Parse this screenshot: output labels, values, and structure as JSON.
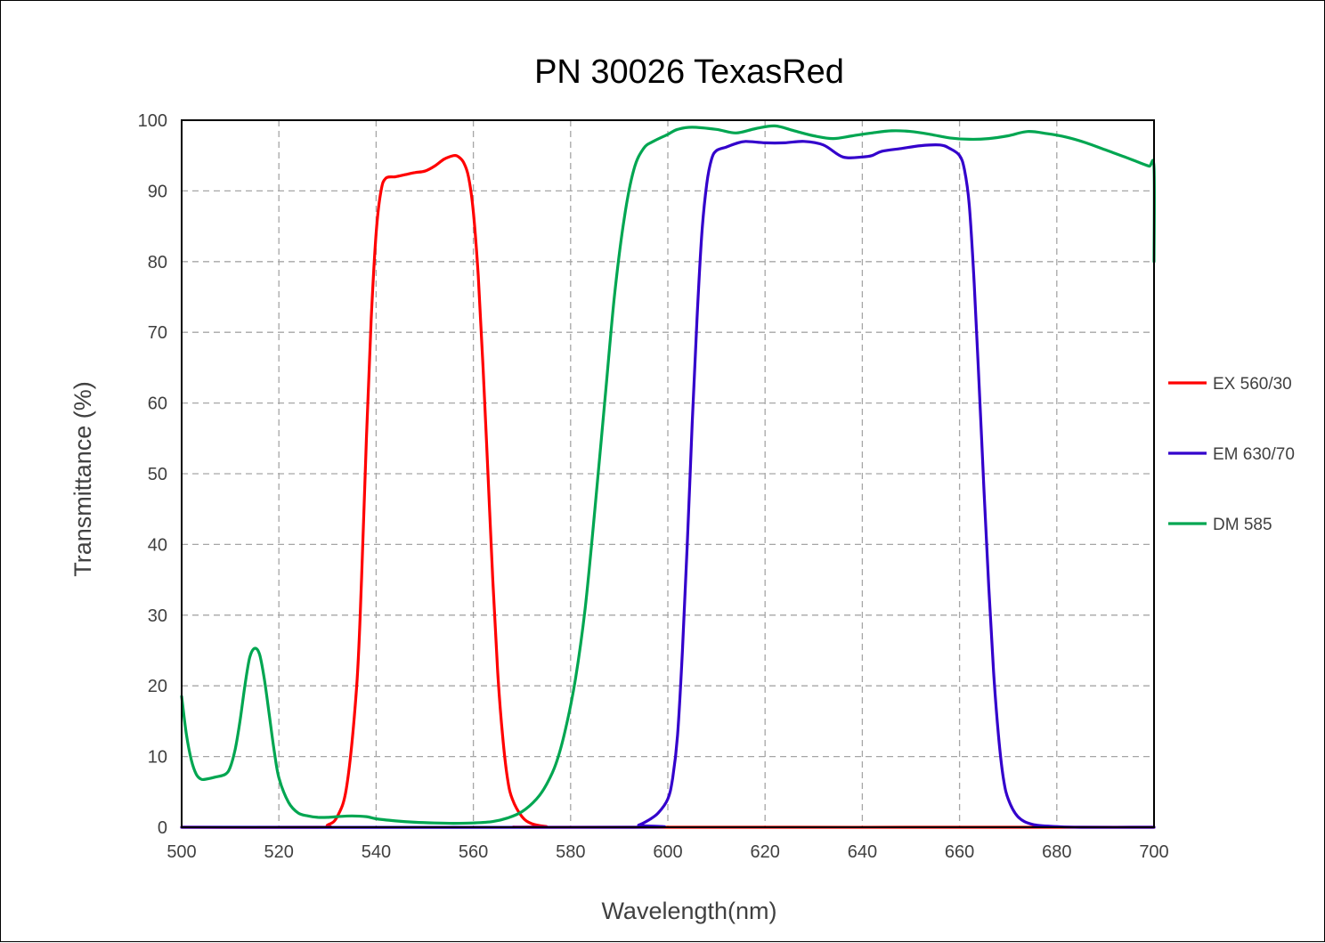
{
  "chart_data": {
    "type": "line",
    "title": "PN 30026 TexasRed",
    "xlabel": "Wavelength(nm)",
    "ylabel": "Transmittance (%)",
    "xlim": [
      500,
      700
    ],
    "ylim": [
      0,
      100
    ],
    "xticks": [
      500,
      520,
      540,
      560,
      580,
      600,
      620,
      640,
      660,
      680,
      700
    ],
    "yticks": [
      0,
      10,
      20,
      30,
      40,
      50,
      60,
      70,
      80,
      90,
      100
    ],
    "grid": true,
    "legend_position": "right",
    "series": [
      {
        "name": "EX 560/30",
        "color": "#ff0000",
        "points": [
          [
            500,
            0
          ],
          [
            528,
            0
          ],
          [
            530,
            0.3
          ],
          [
            532,
            1.5
          ],
          [
            534,
            6
          ],
          [
            536,
            20
          ],
          [
            537,
            35
          ],
          [
            538,
            55
          ],
          [
            539,
            72
          ],
          [
            540,
            84
          ],
          [
            541,
            90
          ],
          [
            542,
            91.8
          ],
          [
            544,
            92
          ],
          [
            546,
            92.3
          ],
          [
            548,
            92.6
          ],
          [
            550,
            92.8
          ],
          [
            552,
            93.5
          ],
          [
            554,
            94.5
          ],
          [
            556,
            95
          ],
          [
            557,
            94.8
          ],
          [
            558,
            94
          ],
          [
            559,
            92
          ],
          [
            560,
            87
          ],
          [
            561,
            78
          ],
          [
            562,
            65
          ],
          [
            563,
            50
          ],
          [
            564,
            35
          ],
          [
            565,
            22
          ],
          [
            566,
            13
          ],
          [
            567,
            7
          ],
          [
            568,
            4
          ],
          [
            570,
            1.5
          ],
          [
            572,
            0.5
          ],
          [
            575,
            0.1
          ],
          [
            578,
            0
          ],
          [
            700,
            0
          ]
        ]
      },
      {
        "name": "EM 630/70",
        "color": "#3300cc",
        "points": [
          [
            500,
            0
          ],
          [
            592,
            0
          ],
          [
            594,
            0.3
          ],
          [
            596,
            1
          ],
          [
            598,
            2
          ],
          [
            600,
            4
          ],
          [
            601,
            7
          ],
          [
            602,
            13
          ],
          [
            603,
            25
          ],
          [
            604,
            40
          ],
          [
            605,
            57
          ],
          [
            606,
            72
          ],
          [
            607,
            84
          ],
          [
            608,
            91
          ],
          [
            609,
            94.5
          ],
          [
            610,
            95.7
          ],
          [
            612,
            96.2
          ],
          [
            614,
            96.7
          ],
          [
            616,
            97
          ],
          [
            620,
            96.8
          ],
          [
            624,
            96.8
          ],
          [
            628,
            97
          ],
          [
            632,
            96.5
          ],
          [
            636,
            94.8
          ],
          [
            640,
            94.8
          ],
          [
            642,
            95
          ],
          [
            644,
            95.6
          ],
          [
            648,
            96
          ],
          [
            652,
            96.4
          ],
          [
            656,
            96.5
          ],
          [
            658,
            96
          ],
          [
            660,
            95
          ],
          [
            661,
            93
          ],
          [
            662,
            88
          ],
          [
            663,
            77
          ],
          [
            664,
            63
          ],
          [
            665,
            48
          ],
          [
            666,
            34
          ],
          [
            667,
            22
          ],
          [
            668,
            13
          ],
          [
            669,
            7
          ],
          [
            670,
            4
          ],
          [
            672,
            1.5
          ],
          [
            675,
            0.4
          ],
          [
            680,
            0.1
          ],
          [
            685,
            0
          ],
          [
            700,
            0
          ]
        ]
      },
      {
        "name": "DM 585",
        "color": "#00a651",
        "points": [
          [
            500,
            18.5
          ],
          [
            501,
            13
          ],
          [
            502,
            9.5
          ],
          [
            503,
            7.5
          ],
          [
            504,
            6.8
          ],
          [
            505,
            6.8
          ],
          [
            507,
            7.1
          ],
          [
            509,
            7.5
          ],
          [
            510,
            8.5
          ],
          [
            511,
            11
          ],
          [
            512,
            15
          ],
          [
            513,
            20
          ],
          [
            514,
            24
          ],
          [
            515,
            25.3
          ],
          [
            516,
            24.5
          ],
          [
            517,
            21
          ],
          [
            518,
            16
          ],
          [
            519,
            11
          ],
          [
            520,
            7
          ],
          [
            522,
            3.5
          ],
          [
            524,
            2
          ],
          [
            526,
            1.6
          ],
          [
            528,
            1.4
          ],
          [
            530,
            1.4
          ],
          [
            532,
            1.5
          ],
          [
            535,
            1.6
          ],
          [
            538,
            1.5
          ],
          [
            540,
            1.2
          ],
          [
            544,
            0.9
          ],
          [
            548,
            0.7
          ],
          [
            552,
            0.6
          ],
          [
            556,
            0.55
          ],
          [
            560,
            0.6
          ],
          [
            564,
            0.8
          ],
          [
            567,
            1.3
          ],
          [
            570,
            2.2
          ],
          [
            573,
            4
          ],
          [
            575,
            6
          ],
          [
            577,
            9
          ],
          [
            579,
            14
          ],
          [
            581,
            21
          ],
          [
            583,
            31
          ],
          [
            585,
            45
          ],
          [
            587,
            60
          ],
          [
            589,
            75
          ],
          [
            591,
            86
          ],
          [
            593,
            93
          ],
          [
            595,
            96
          ],
          [
            597,
            97
          ],
          [
            600,
            98
          ],
          [
            602,
            98.7
          ],
          [
            605,
            99
          ],
          [
            610,
            98.7
          ],
          [
            614,
            98.2
          ],
          [
            618,
            98.8
          ],
          [
            622,
            99.2
          ],
          [
            626,
            98.5
          ],
          [
            630,
            97.8
          ],
          [
            634,
            97.4
          ],
          [
            638,
            97.8
          ],
          [
            642,
            98.2
          ],
          [
            646,
            98.5
          ],
          [
            650,
            98.4
          ],
          [
            654,
            98
          ],
          [
            658,
            97.5
          ],
          [
            662,
            97.3
          ],
          [
            666,
            97.4
          ],
          [
            670,
            97.8
          ],
          [
            674,
            98.4
          ],
          [
            678,
            98.1
          ],
          [
            682,
            97.6
          ],
          [
            686,
            96.8
          ],
          [
            690,
            95.8
          ],
          [
            694,
            94.8
          ],
          [
            697,
            94
          ],
          [
            699,
            93.5
          ],
          [
            700,
            93.3
          ],
          [
            700,
            80
          ]
        ]
      }
    ]
  }
}
